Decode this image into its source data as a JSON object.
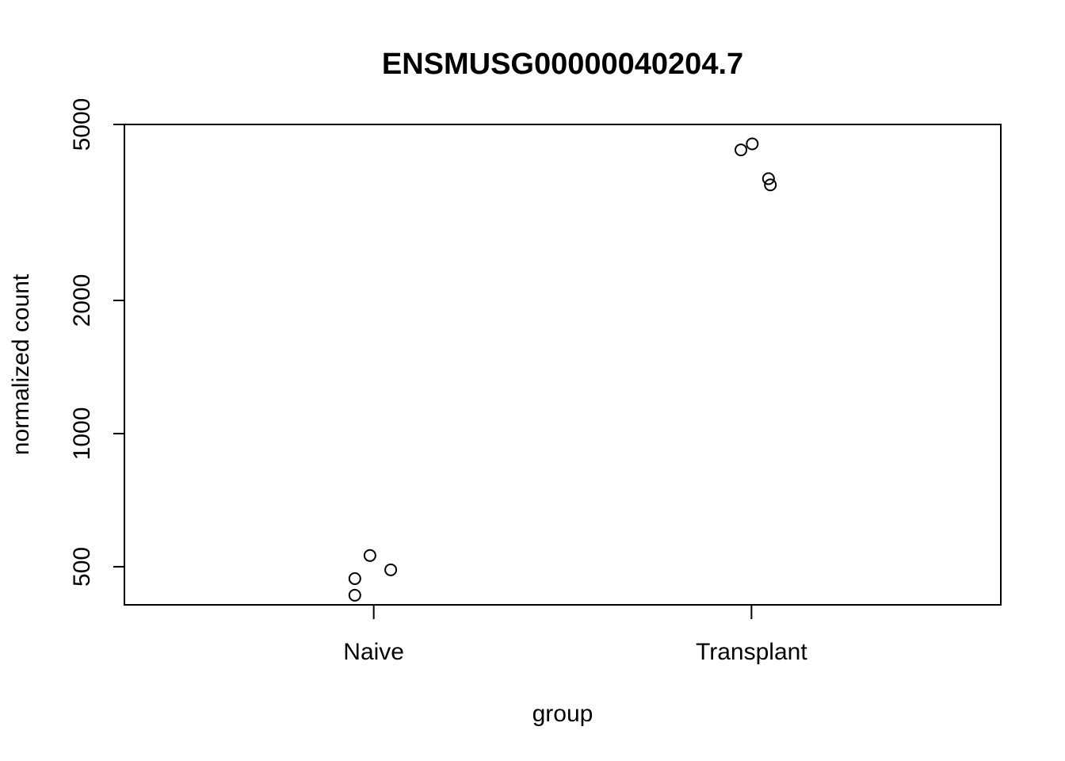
{
  "chart_data": {
    "type": "scatter",
    "title": "ENSMUSG00000040204.7",
    "xlabel": "group",
    "ylabel": "normalized count",
    "y_scale": "log",
    "ylim": [
      410,
      5000
    ],
    "y_ticks": [
      {
        "value": 500,
        "label": "500"
      },
      {
        "value": 1000,
        "label": "1000"
      },
      {
        "value": 2000,
        "label": "2000"
      },
      {
        "value": 5000,
        "label": "5000"
      }
    ],
    "categories": [
      "Naive",
      "Transplant"
    ],
    "points": [
      {
        "category": "Naive",
        "jitter": -0.05,
        "y": 470
      },
      {
        "category": "Naive",
        "jitter": -0.05,
        "y": 431
      },
      {
        "category": "Naive",
        "jitter": -0.01,
        "y": 530
      },
      {
        "category": "Naive",
        "jitter": 0.045,
        "y": 492
      },
      {
        "category": "Transplant",
        "jitter": -0.028,
        "y": 4380
      },
      {
        "category": "Transplant",
        "jitter": 0.002,
        "y": 4520
      },
      {
        "category": "Transplant",
        "jitter": 0.045,
        "y": 3770
      },
      {
        "category": "Transplant",
        "jitter": 0.05,
        "y": 3650
      }
    ],
    "grid": false,
    "legend": "none",
    "marker": "open-circle",
    "color": "#000000"
  }
}
